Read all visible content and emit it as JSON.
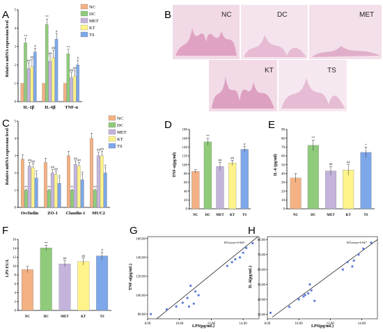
{
  "colors": {
    "NC": "#f4b183",
    "DC": "#8fcb7a",
    "MET": "#c4b4dc",
    "KT": "#fff38a",
    "TS": "#7da7e8"
  },
  "panels": {
    "A": {
      "letter": "A",
      "ylabel": "Relative mRNA expression level"
    },
    "B": {
      "letter": "B",
      "tiles": [
        "NC",
        "DC",
        "MET",
        "KT",
        "TS"
      ]
    },
    "C": {
      "letter": "C",
      "ylabel": "Relative mRNA expression level"
    },
    "D": {
      "letter": "D",
      "ylabel": "TNF-α(pg/ml)"
    },
    "E": {
      "letter": "E",
      "ylabel": "IL-6 (pg/ml)"
    },
    "F": {
      "letter": "F",
      "ylabel": "LPS EU/L"
    },
    "G": {
      "letter": "G",
      "xlabel": "LPS(pg/mL)",
      "ylabel": "TNF-α(pg/mL)",
      "r2": "R²Linear=0.949"
    },
    "H": {
      "letter": "H",
      "xlabel": "LPS(pg/mL)",
      "ylabel": "IL-6(pg/mL)",
      "r2": "R²Linear=0.947"
    }
  },
  "chart_data": [
    {
      "id": "A",
      "type": "bar",
      "categories": [
        "IL-1β",
        "IL-6β",
        "TNF-α"
      ],
      "ylim": [
        0,
        5
      ],
      "yticks": [
        0,
        1,
        2,
        3,
        4,
        5
      ],
      "legend": [
        "NC",
        "DC",
        "MET",
        "KT",
        "TS"
      ],
      "series": [
        {
          "name": "NC",
          "values": [
            1,
            1,
            1
          ],
          "err": [
            0,
            0,
            0
          ]
        },
        {
          "name": "DC",
          "values": [
            3.2,
            4.2,
            2.6
          ],
          "err": [
            0.25,
            0.3,
            0.25
          ]
        },
        {
          "name": "MET",
          "values": [
            1.8,
            2.2,
            1.3
          ],
          "err": [
            0.3,
            0.3,
            0.3
          ]
        },
        {
          "name": "KT",
          "values": [
            1.9,
            2.4,
            1.4
          ],
          "err": [
            0.4,
            0.4,
            0.3
          ]
        },
        {
          "name": "TS",
          "values": [
            2.7,
            3.4,
            2.0
          ],
          "err": [
            0.2,
            0.3,
            0.25
          ]
        }
      ],
      "labels": [
        [
          "",
          "**",
          "##",
          "##",
          "#"
        ],
        [
          "",
          "**",
          "##",
          "##",
          "#"
        ],
        [
          "",
          "**",
          "##",
          "##",
          "#"
        ]
      ]
    },
    {
      "id": "C",
      "type": "bar",
      "categories": [
        "Occludin",
        "ZO-1",
        "Claudin-1",
        "MUC2"
      ],
      "ylim": [
        0,
        5
      ],
      "yticks": [
        0,
        1,
        2,
        3,
        4,
        5
      ],
      "legend": [
        "NC",
        "DC",
        "MET",
        "KT",
        "TS"
      ],
      "series": [
        {
          "name": "NC",
          "values": [
            2.8,
            2.6,
            3.0,
            4.0
          ],
          "err": [
            0.25,
            0.25,
            0.25,
            0.3
          ]
        },
        {
          "name": "DC",
          "values": [
            1.0,
            1.0,
            1.0,
            1.0
          ],
          "err": [
            0.05,
            0.05,
            0.05,
            0.05
          ]
        },
        {
          "name": "MET",
          "values": [
            2.4,
            2.0,
            2.5,
            3.0
          ],
          "err": [
            0.2,
            0.2,
            0.2,
            0.2
          ]
        },
        {
          "name": "KT",
          "values": [
            2.3,
            1.9,
            2.4,
            3.0
          ],
          "err": [
            0.25,
            0.2,
            0.2,
            0.25
          ]
        },
        {
          "name": "TS",
          "values": [
            1.7,
            1.4,
            1.6,
            2.0
          ],
          "err": [
            0.25,
            0.3,
            0.3,
            0.3
          ]
        }
      ],
      "labels": [
        [
          "",
          "**",
          "##",
          "##",
          "#"
        ],
        [
          "",
          "**",
          "##",
          "##",
          "#"
        ],
        [
          "",
          "**",
          "##",
          "##",
          "#"
        ],
        [
          "",
          "**",
          "##",
          "##",
          "#"
        ]
      ]
    },
    {
      "id": "D",
      "type": "bar",
      "categories": [
        "NC",
        "DC",
        "MET",
        "KT",
        "TS"
      ],
      "ylim": [
        0,
        180
      ],
      "yticks": [
        0,
        20,
        40,
        60,
        80,
        100,
        120,
        140,
        160,
        180
      ],
      "values": [
        85,
        152,
        96,
        104,
        135
      ],
      "err": [
        4,
        8,
        9,
        6,
        6
      ],
      "labels": [
        "",
        "**",
        "##",
        "##",
        "#"
      ]
    },
    {
      "id": "E",
      "type": "bar",
      "categories": [
        "NC",
        "DC",
        "MET",
        "KT",
        "TS"
      ],
      "ylim": [
        0,
        90
      ],
      "yticks": [
        0,
        10,
        20,
        30,
        40,
        50,
        60,
        70,
        80,
        90
      ],
      "values": [
        35,
        72,
        43,
        44,
        64
      ],
      "err": [
        5,
        6,
        5,
        6,
        6
      ],
      "labels": [
        "",
        "**",
        "##",
        "##",
        "*"
      ]
    },
    {
      "id": "F",
      "type": "bar",
      "categories": [
        "NC",
        "DC",
        "MET",
        "KT",
        "TS"
      ],
      "ylim": [
        0,
        16
      ],
      "yticks": [
        0,
        2,
        4,
        6,
        8,
        10,
        12,
        14,
        16
      ],
      "values": [
        9.2,
        14.1,
        10.5,
        11.0,
        12.3
      ],
      "err": [
        0.7,
        0.6,
        0.7,
        0.8,
        0.8
      ],
      "labels": [
        "",
        "**",
        "##",
        "##",
        "#"
      ]
    },
    {
      "id": "G",
      "type": "scatter",
      "xlim": [
        8,
        15
      ],
      "ylim": [
        75,
        162
      ],
      "xticks": [
        8,
        10,
        12,
        14
      ],
      "yticks": [
        80,
        100,
        120,
        140,
        160
      ],
      "xtick_labels": [
        "8.00",
        "10.00",
        "12.00",
        "14.00"
      ],
      "ytick_labels": [
        "80.00",
        "100.00",
        "120.00",
        "140.00",
        "160.00"
      ],
      "points": [
        [
          8.2,
          80
        ],
        [
          9.2,
          85
        ],
        [
          9.8,
          88
        ],
        [
          10.2,
          92
        ],
        [
          10.5,
          97
        ],
        [
          10.7,
          110
        ],
        [
          11.0,
          104
        ],
        [
          11.2,
          100
        ],
        [
          10.9,
          91
        ],
        [
          10.6,
          88
        ],
        [
          13.0,
          131
        ],
        [
          13.3,
          135
        ],
        [
          13.5,
          138
        ],
        [
          14.0,
          145
        ],
        [
          14.2,
          150
        ],
        [
          14.6,
          155
        ],
        [
          13.8,
          140
        ]
      ],
      "fit": [
        [
          8.5,
          74
        ],
        [
          15,
          163
        ]
      ]
    },
    {
      "id": "H",
      "type": "scatter",
      "xlim": [
        8,
        15
      ],
      "ylim": [
        27,
        82
      ],
      "xticks": [
        8,
        10,
        12,
        14
      ],
      "yticks": [
        30,
        40,
        50,
        60,
        70,
        80
      ],
      "xtick_labels": [
        "8.00",
        "10.00",
        "12.00",
        "14.00"
      ],
      "ytick_labels": [
        "30.00",
        "40.00",
        "50.00",
        "60.00",
        "70.00",
        "80.00"
      ],
      "points": [
        [
          8.2,
          31
        ],
        [
          9.4,
          35
        ],
        [
          10.0,
          40
        ],
        [
          10.3,
          42
        ],
        [
          10.7,
          50
        ],
        [
          10.8,
          46
        ],
        [
          11.0,
          39
        ],
        [
          10.6,
          44
        ],
        [
          10.4,
          43
        ],
        [
          12.8,
          60
        ],
        [
          13.1,
          65
        ],
        [
          13.5,
          66
        ],
        [
          13.8,
          70
        ],
        [
          14.1,
          74
        ],
        [
          14.6,
          78
        ],
        [
          13.4,
          62
        ]
      ],
      "fit": [
        [
          8.3,
          28
        ],
        [
          15,
          80
        ]
      ]
    }
  ]
}
